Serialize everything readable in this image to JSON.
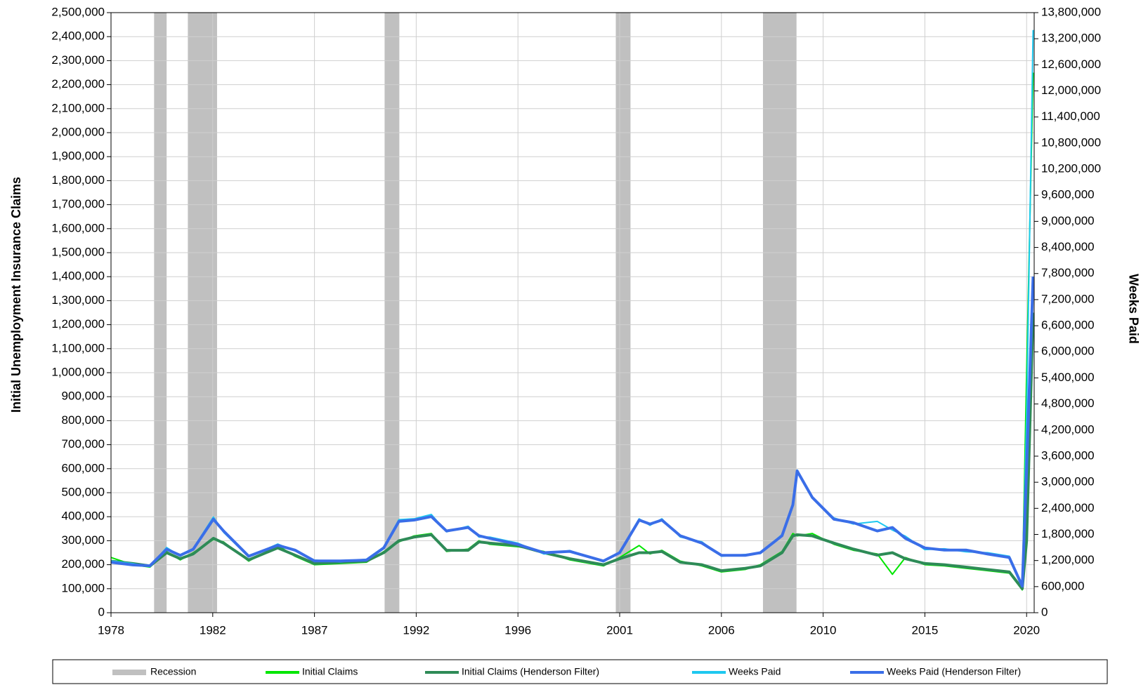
{
  "chart_data": {
    "type": "line",
    "y_label": "Initial Unemployment Insurance Claims",
    "y2_label": "Weeks Paid",
    "x": [
      1978,
      1979,
      1979.8,
      1980.57,
      1981.2,
      1981.8,
      1982.73,
      1983.2,
      1984.36,
      1985.7,
      1986.5,
      1987.4,
      1988.6,
      1989.8,
      1990.6,
      1991.3,
      1992.0,
      1992.8,
      1993.5,
      1994.5,
      1995.0,
      1995.5,
      1996.8,
      1998.0,
      1999.2,
      2000.75,
      2001.5,
      2002.4,
      2002.9,
      2003.45,
      2004.3,
      2005.3,
      2006.2,
      2007.3,
      2008.0,
      2009.0,
      2009.5,
      2009.7,
      2010.4,
      2011.4,
      2012.3,
      2013.4,
      2014.1,
      2014.7,
      2015.6,
      2016.5,
      2017.5,
      2018.5,
      2019.5,
      2020.1,
      2020.3,
      2020.6
    ],
    "xlim": [
      1978,
      2020.65
    ],
    "xticks": [
      1978,
      {
        "value": 1982.7,
        "label": "1982"
      },
      {
        "value": 1987.4,
        "label": "1987"
      },
      {
        "value": 1992.1,
        "label": "1992"
      },
      {
        "value": 1996.8,
        "label": "1996"
      },
      {
        "value": 2001.5,
        "label": "2001"
      },
      {
        "value": 2006.2,
        "label": "2006"
      },
      {
        "value": 2010.9,
        "label": "2010"
      },
      {
        "value": 2015.6,
        "label": "2015"
      },
      {
        "value": 2020.3,
        "label": "2020"
      }
    ],
    "ylim": [
      0,
      2500000
    ],
    "yticks": [
      0,
      {
        "value": 100000,
        "label": "100,000"
      },
      {
        "value": 200000,
        "label": "200,000"
      },
      {
        "value": 300000,
        "label": "300,000"
      },
      {
        "value": 400000,
        "label": "400,000"
      },
      {
        "value": 500000,
        "label": "500,000"
      },
      {
        "value": 600000,
        "label": "600,000"
      },
      {
        "value": 700000,
        "label": "700,000"
      },
      {
        "value": 800000,
        "label": "800,000"
      },
      {
        "value": 900000,
        "label": "900,000"
      },
      {
        "value": 1000000,
        "label": "1,000,000"
      },
      {
        "value": 1100000,
        "label": "1,100,000"
      },
      {
        "value": 1200000,
        "label": "1,200,000"
      },
      {
        "value": 1300000,
        "label": "1,300,000"
      },
      {
        "value": 1400000,
        "label": "1,400,000"
      },
      {
        "value": 1500000,
        "label": "1,500,000"
      },
      {
        "value": 1600000,
        "label": "1,600,000"
      },
      {
        "value": 1700000,
        "label": "1,700,000"
      },
      {
        "value": 1800000,
        "label": "1,800,000"
      },
      {
        "value": 1900000,
        "label": "1,900,000"
      },
      {
        "value": 2000000,
        "label": "2,000,000"
      },
      {
        "value": 2100000,
        "label": "2,100,000"
      },
      {
        "value": 2200000,
        "label": "2,200,000"
      },
      {
        "value": 2300000,
        "label": "2,300,000"
      },
      {
        "value": 2400000,
        "label": "2,400,000"
      },
      {
        "value": 2500000,
        "label": "2,500,000"
      }
    ],
    "y2lim": [
      0,
      13800000
    ],
    "y2ticks": [
      0,
      {
        "value": 600000,
        "label": "600,000"
      },
      {
        "value": 1200000,
        "label": "1,200,000"
      },
      {
        "value": 1800000,
        "label": "1,800,000"
      },
      {
        "value": 2400000,
        "label": "2,400,000"
      },
      {
        "value": 3000000,
        "label": "3,000,000"
      },
      {
        "value": 3600000,
        "label": "3,600,000"
      },
      {
        "value": 4200000,
        "label": "4,200,000"
      },
      {
        "value": 4800000,
        "label": "4,800,000"
      },
      {
        "value": 5400000,
        "label": "5,400,000"
      },
      {
        "value": 6000000,
        "label": "6,000,000"
      },
      {
        "value": 6600000,
        "label": "6,600,000"
      },
      {
        "value": 7200000,
        "label": "7,200,000"
      },
      {
        "value": 7800000,
        "label": "7,800,000"
      },
      {
        "value": 8400000,
        "label": "8,400,000"
      },
      {
        "value": 9000000,
        "label": "9,000,000"
      },
      {
        "value": 9600000,
        "label": "9,600,000"
      },
      {
        "value": 10200000,
        "label": "10,200,000"
      },
      {
        "value": 10800000,
        "label": "10,800,000"
      },
      {
        "value": 11400000,
        "label": "11,400,000"
      },
      {
        "value": 12000000,
        "label": "12,000,000"
      },
      {
        "value": 12600000,
        "label": "12,600,000"
      },
      {
        "value": 13200000,
        "label": "13,200,000"
      },
      {
        "value": 13800000,
        "label": "13,800,000"
      }
    ],
    "grid": true,
    "legend": "bottom",
    "recession_label": "Recession",
    "recession_color": "#c0c0c0",
    "recessions": [
      {
        "start": 1979.99,
        "end": 1980.57
      },
      {
        "start": 1981.55,
        "end": 1982.9
      },
      {
        "start": 1990.64,
        "end": 1991.32
      },
      {
        "start": 2001.32,
        "end": 2002.0
      },
      {
        "start": 2008.12,
        "end": 2009.67
      }
    ],
    "series": [
      {
        "name": "Initial Claims",
        "color": "#00e600",
        "values": [
          230000,
          200000,
          190000,
          255000,
          220000,
          250000,
          305000,
          295000,
          215000,
          280000,
          235000,
          200000,
          205000,
          210000,
          255000,
          295000,
          320000,
          330000,
          255000,
          265000,
          300000,
          285000,
          275000,
          255000,
          220000,
          195000,
          230000,
          280000,
          245000,
          260000,
          215000,
          195000,
          170000,
          180000,
          200000,
          255000,
          330000,
          320000,
          330000,
          285000,
          260000,
          245000,
          160000,
          230000,
          200000,
          195000,
          185000,
          175000,
          165000,
          95000,
          1000000,
          2250000
        ]
      },
      {
        "name": "Initial Claims (Henderson Filter)",
        "color": "#2e8b57",
        "values": [
          215000,
          205000,
          195000,
          250000,
          225000,
          245000,
          310000,
          290000,
          220000,
          270000,
          240000,
          205000,
          210000,
          215000,
          250000,
          300000,
          315000,
          325000,
          260000,
          260000,
          295000,
          290000,
          280000,
          250000,
          225000,
          200000,
          225000,
          250000,
          250000,
          255000,
          210000,
          200000,
          175000,
          185000,
          195000,
          250000,
          320000,
          325000,
          320000,
          290000,
          265000,
          240000,
          250000,
          225000,
          205000,
          200000,
          190000,
          180000,
          170000,
          100000,
          300000,
          1250000
        ]
      },
      {
        "name": "Weeks Paid",
        "color": "#1ec8f0",
        "axis": "y2",
        "values": [
          1190000,
          1130000,
          1060000,
          1500000,
          1300000,
          1480000,
          2200000,
          1850000,
          1280000,
          1580000,
          1420000,
          1210000,
          1170000,
          1230000,
          1510000,
          2140000,
          2160000,
          2260000,
          1860000,
          1990000,
          1740000,
          1740000,
          1600000,
          1350000,
          1430000,
          1170000,
          1400000,
          2160000,
          2010000,
          2160000,
          1740000,
          1630000,
          1300000,
          1340000,
          1360000,
          1800000,
          2500000,
          3280000,
          2630000,
          2180000,
          2040000,
          2100000,
          1900000,
          1760000,
          1450000,
          1470000,
          1400000,
          1380000,
          1300000,
          640000,
          4500000,
          13400000
        ]
      },
      {
        "name": "Weeks Paid (Henderson Filter)",
        "color": "#3a6ee8",
        "axis": "y2",
        "values": [
          1160000,
          1100000,
          1080000,
          1460000,
          1320000,
          1460000,
          2150000,
          1880000,
          1300000,
          1550000,
          1440000,
          1190000,
          1190000,
          1210000,
          1490000,
          2100000,
          2130000,
          2210000,
          1880000,
          1960000,
          1770000,
          1710000,
          1570000,
          1380000,
          1410000,
          1190000,
          1380000,
          2130000,
          2040000,
          2130000,
          1770000,
          1600000,
          1320000,
          1320000,
          1380000,
          1770000,
          2480000,
          3260000,
          2650000,
          2150000,
          2070000,
          1880000,
          1960000,
          1710000,
          1490000,
          1440000,
          1440000,
          1350000,
          1270000,
          610000,
          3310000,
          7730000
        ]
      }
    ]
  }
}
